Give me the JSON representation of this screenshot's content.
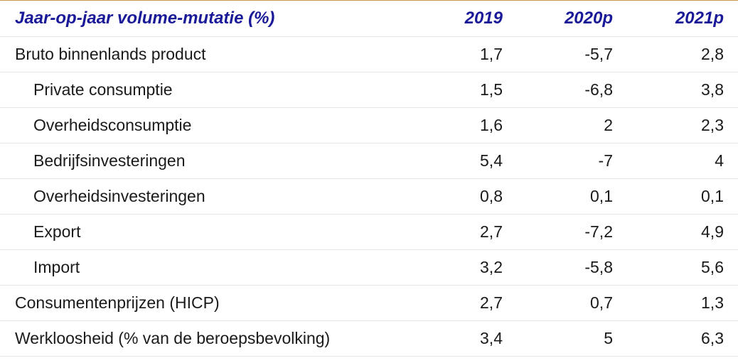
{
  "table": {
    "header": {
      "title": "Jaar-op-jaar volume-mutatie (%)",
      "columns": [
        "2019",
        "2020p",
        "2021p"
      ]
    },
    "rows": [
      {
        "label": "Bruto binnenlands product",
        "values": [
          "1,7",
          "-5,7",
          "2,8"
        ]
      },
      {
        "label": "Private consumptie",
        "values": [
          "1,5",
          "-6,8",
          "3,8"
        ]
      },
      {
        "label": "Overheidsconsumptie",
        "values": [
          "1,6",
          "2",
          "2,3"
        ]
      },
      {
        "label": "Bedrijfsinvesteringen",
        "values": [
          "5,4",
          "-7",
          "4"
        ]
      },
      {
        "label": "Overheidsinvesteringen",
        "values": [
          "0,8",
          "0,1",
          "0,1"
        ]
      },
      {
        "label": "Export",
        "values": [
          "2,7",
          "-7,2",
          "4,9"
        ]
      },
      {
        "label": "Import",
        "values": [
          "3,2",
          "-5,8",
          "5,6"
        ]
      },
      {
        "label": "Consumentenprijzen (HICP)",
        "values": [
          "2,7",
          "0,7",
          "1,3"
        ]
      },
      {
        "label": "Werkloosheid (% van de beroepsbevolking)",
        "values": [
          "3,4",
          "5",
          "6,3"
        ]
      }
    ]
  },
  "colors": {
    "header_text": "#1a1a99",
    "top_rule": "#c9974a",
    "row_divider": "#e6e6e6"
  }
}
